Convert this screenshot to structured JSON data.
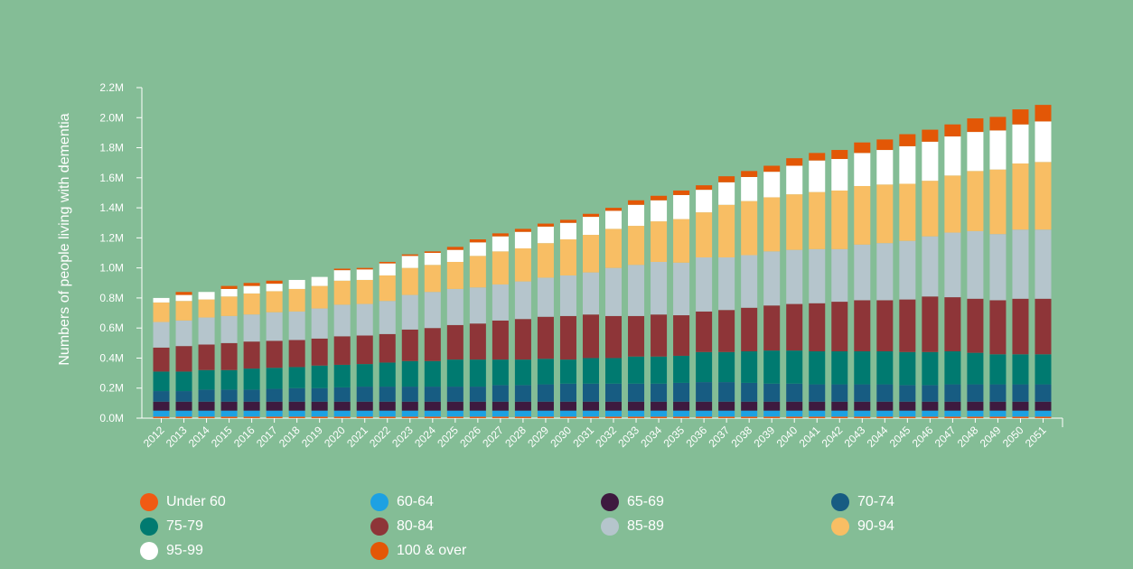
{
  "chart_data": {
    "type": "bar",
    "stacked": true,
    "title": "",
    "xlabel": "",
    "ylabel": "Numbers of people living with dementia",
    "ylim": [
      0,
      2200000
    ],
    "yticks": [
      "0.0M",
      "0.2M",
      "0.4M",
      "0.6M",
      "0.8M",
      "1.0M",
      "1.2M",
      "1.4M",
      "1.6M",
      "1.8M",
      "2.0M",
      "2.2M"
    ],
    "ytick_values": [
      0,
      200000,
      400000,
      600000,
      800000,
      1000000,
      1200000,
      1400000,
      1600000,
      1800000,
      2000000,
      2200000
    ],
    "legend_position": "bottom",
    "categories": [
      "2012",
      "2013",
      "2014",
      "2015",
      "2016",
      "2017",
      "2018",
      "2019",
      "2020",
      "2021",
      "2022",
      "2023",
      "2024",
      "2025",
      "2026",
      "2027",
      "2028",
      "2029",
      "2030",
      "2031",
      "2032",
      "2033",
      "2034",
      "2035",
      "2036",
      "2037",
      "2038",
      "2039",
      "2040",
      "2041",
      "2042",
      "2043",
      "2044",
      "2045",
      "2046",
      "2047",
      "2048",
      "2049",
      "2050",
      "2051"
    ],
    "series": [
      {
        "name": "Under 60",
        "color": "#f05a14",
        "values": [
          10000,
          10000,
          10000,
          10000,
          10000,
          10000,
          10000,
          10000,
          10000,
          10000,
          10000,
          10000,
          10000,
          10000,
          10000,
          10000,
          10000,
          10000,
          10000,
          10000,
          10000,
          10000,
          10000,
          10000,
          10000,
          10000,
          10000,
          10000,
          10000,
          10000,
          10000,
          10000,
          10000,
          10000,
          10000,
          10000,
          10000,
          10000,
          10000,
          10000
        ]
      },
      {
        "name": "60-64",
        "color": "#1da1e2",
        "values": [
          40000,
          40000,
          40000,
          40000,
          40000,
          40000,
          40000,
          40000,
          40000,
          40000,
          40000,
          40000,
          40000,
          40000,
          40000,
          40000,
          40000,
          40000,
          40000,
          40000,
          40000,
          40000,
          40000,
          40000,
          40000,
          40000,
          40000,
          40000,
          40000,
          40000,
          40000,
          40000,
          40000,
          40000,
          40000,
          40000,
          40000,
          40000,
          40000,
          40000
        ]
      },
      {
        "name": "65-69",
        "color": "#3e1a3f",
        "values": [
          60000,
          60000,
          60000,
          60000,
          60000,
          60000,
          60000,
          60000,
          60000,
          60000,
          60000,
          60000,
          60000,
          60000,
          60000,
          60000,
          60000,
          60000,
          60000,
          60000,
          60000,
          60000,
          60000,
          60000,
          60000,
          60000,
          60000,
          60000,
          60000,
          60000,
          60000,
          60000,
          60000,
          60000,
          60000,
          60000,
          60000,
          60000,
          60000,
          60000
        ]
      },
      {
        "name": "70-74",
        "color": "#175c82",
        "values": [
          70000,
          70000,
          80000,
          80000,
          80000,
          85000,
          90000,
          90000,
          95000,
          100000,
          100000,
          100000,
          100000,
          100000,
          100000,
          110000,
          110000,
          115000,
          120000,
          120000,
          120000,
          120000,
          120000,
          125000,
          130000,
          130000,
          125000,
          120000,
          120000,
          115000,
          115000,
          115000,
          115000,
          110000,
          110000,
          115000,
          115000,
          115000,
          115000,
          115000
        ]
      },
      {
        "name": "75-79",
        "color": "#007a70",
        "values": [
          130000,
          130000,
          130000,
          130000,
          140000,
          140000,
          140000,
          150000,
          150000,
          150000,
          160000,
          170000,
          170000,
          180000,
          180000,
          170000,
          170000,
          170000,
          160000,
          170000,
          170000,
          180000,
          180000,
          180000,
          200000,
          200000,
          210000,
          220000,
          220000,
          220000,
          220000,
          220000,
          220000,
          220000,
          220000,
          220000,
          210000,
          200000,
          200000,
          200000
        ]
      },
      {
        "name": "80-84",
        "color": "#8e3538",
        "values": [
          160000,
          170000,
          170000,
          180000,
          180000,
          180000,
          180000,
          180000,
          190000,
          190000,
          190000,
          210000,
          220000,
          230000,
          240000,
          260000,
          270000,
          280000,
          290000,
          290000,
          280000,
          270000,
          280000,
          270000,
          270000,
          280000,
          290000,
          300000,
          310000,
          320000,
          330000,
          340000,
          340000,
          350000,
          370000,
          360000,
          360000,
          360000,
          370000,
          370000
        ]
      },
      {
        "name": "85-89",
        "color": "#b5c5cc",
        "values": [
          170000,
          170000,
          180000,
          180000,
          180000,
          190000,
          190000,
          200000,
          210000,
          210000,
          220000,
          230000,
          240000,
          240000,
          240000,
          240000,
          250000,
          260000,
          270000,
          280000,
          320000,
          340000,
          350000,
          350000,
          360000,
          350000,
          350000,
          360000,
          360000,
          360000,
          350000,
          370000,
          380000,
          390000,
          400000,
          430000,
          450000,
          440000,
          460000,
          460000
        ]
      },
      {
        "name": "90-94",
        "color": "#f8be64",
        "values": [
          130000,
          130000,
          120000,
          130000,
          140000,
          140000,
          150000,
          150000,
          160000,
          160000,
          170000,
          180000,
          180000,
          180000,
          210000,
          220000,
          220000,
          230000,
          240000,
          250000,
          260000,
          260000,
          270000,
          290000,
          300000,
          350000,
          360000,
          360000,
          370000,
          380000,
          390000,
          390000,
          390000,
          380000,
          370000,
          380000,
          400000,
          430000,
          440000,
          450000
        ]
      },
      {
        "name": "95-99",
        "color": "#ffffff",
        "values": [
          30000,
          40000,
          50000,
          50000,
          50000,
          50000,
          60000,
          60000,
          70000,
          70000,
          80000,
          80000,
          80000,
          80000,
          90000,
          100000,
          110000,
          110000,
          110000,
          120000,
          120000,
          140000,
          140000,
          160000,
          150000,
          150000,
          160000,
          170000,
          190000,
          210000,
          210000,
          220000,
          230000,
          250000,
          260000,
          260000,
          260000,
          260000,
          260000,
          270000
        ]
      },
      {
        "name": "100 & over",
        "color": "#e35706",
        "values": [
          0,
          20000,
          0,
          20000,
          20000,
          20000,
          0,
          0,
          10000,
          10000,
          10000,
          10000,
          10000,
          20000,
          20000,
          20000,
          20000,
          20000,
          20000,
          20000,
          20000,
          30000,
          30000,
          30000,
          30000,
          40000,
          40000,
          40000,
          50000,
          50000,
          60000,
          70000,
          70000,
          80000,
          80000,
          80000,
          90000,
          90000,
          100000,
          110000
        ]
      }
    ]
  }
}
